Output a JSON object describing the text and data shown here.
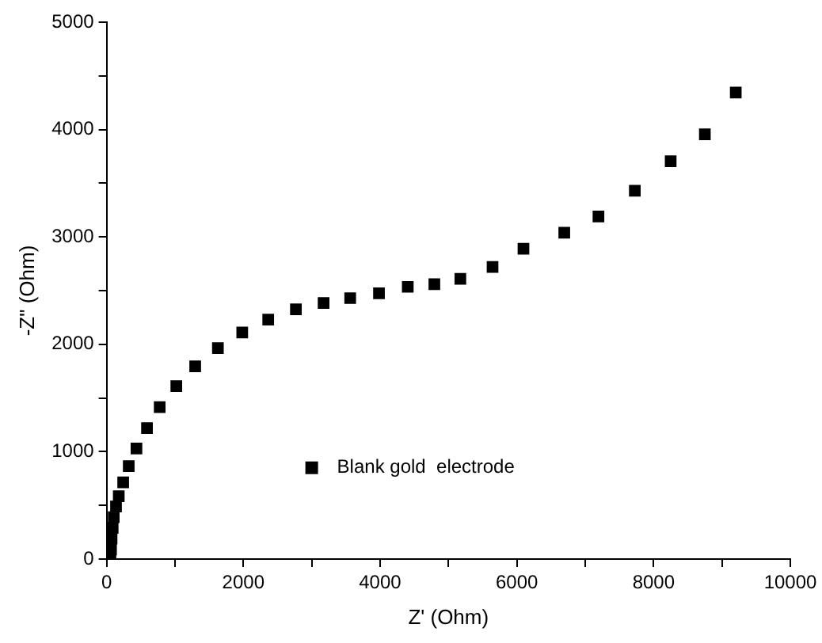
{
  "chart_data": {
    "type": "scatter",
    "xlabel": "Z' (Ohm)",
    "ylabel": "-Z\" (Ohm)",
    "x": [
      57,
      65,
      73,
      89,
      105,
      138,
      178,
      243,
      324,
      437,
      591,
      777,
      1020,
      1296,
      1628,
      1984,
      2364,
      2769,
      3174,
      3563,
      3984,
      4405,
      4794,
      5174,
      5645,
      6097,
      6694,
      7194,
      7726,
      8250,
      8750,
      9202
    ],
    "series": [
      {
        "name": "Blank gold  electrode",
        "color": "#000000",
        "values": [
          15,
          90,
          190,
          290,
          390,
          490,
          585,
          715,
          865,
          1030,
          1220,
          1415,
          1610,
          1795,
          1965,
          2110,
          2230,
          2325,
          2385,
          2430,
          2475,
          2535,
          2560,
          2610,
          2720,
          2890,
          3040,
          3190,
          3430,
          3705,
          3955,
          4345
        ]
      }
    ],
    "xlim": [
      0,
      10000
    ],
    "ylim": [
      0,
      5000
    ],
    "xticks": [
      0,
      {
        "value": 1000,
        "label": null
      },
      2000,
      {
        "value": 3000,
        "label": null
      },
      4000,
      {
        "value": 5000,
        "label": null
      },
      6000,
      {
        "value": 7000,
        "label": null
      },
      8000,
      {
        "value": 9000,
        "label": null
      },
      10000
    ],
    "yticks": [
      0,
      {
        "value": 500,
        "label": null
      },
      1000,
      {
        "value": 1500,
        "label": null
      },
      2000,
      {
        "value": 2500,
        "label": null
      },
      3000,
      {
        "value": 3500,
        "label": null
      },
      4000,
      {
        "value": 4500,
        "label": null
      },
      5000
    ],
    "marker": "square",
    "legend": "bottom",
    "grid": false
  }
}
